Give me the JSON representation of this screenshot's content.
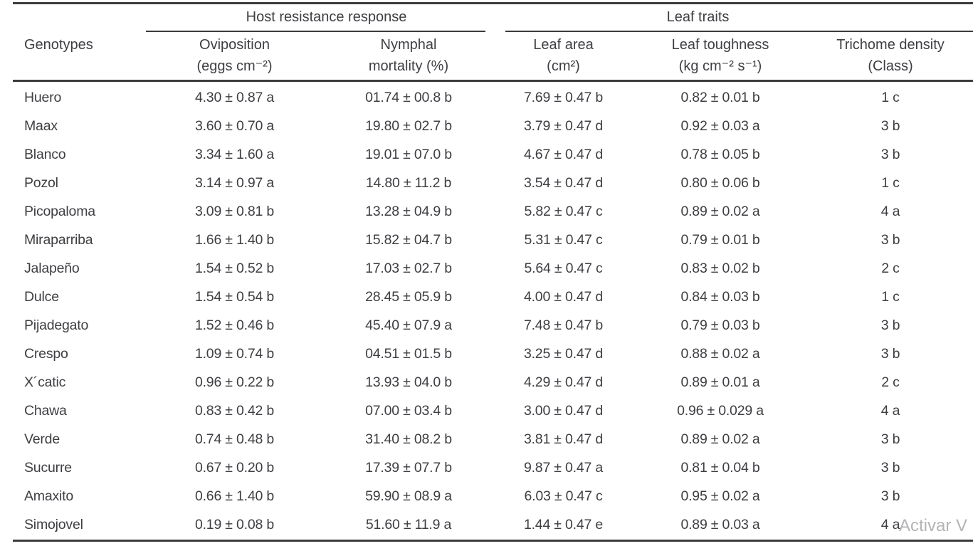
{
  "table": {
    "column_groups": [
      {
        "label": "Host resistance response"
      },
      {
        "label": "Leaf traits"
      }
    ],
    "columns": [
      {
        "label": "Genotypes",
        "sub": ""
      },
      {
        "label": "Oviposition",
        "sub": "(eggs cm⁻²)"
      },
      {
        "label": "Nymphal",
        "sub": "mortality (%)"
      },
      {
        "label": "Leaf area",
        "sub": "(cm²)"
      },
      {
        "label": "Leaf toughness",
        "sub": "(kg cm⁻² s⁻¹)"
      },
      {
        "label": "Trichome density",
        "sub": "(Class)"
      }
    ],
    "rows": [
      [
        "Huero",
        "4.30 ± 0.87 a",
        "01.74 ± 00.8 b",
        "7.69 ± 0.47 b",
        "0.82 ± 0.01 b",
        "1 c"
      ],
      [
        "Maax",
        "3.60 ± 0.70 a",
        "19.80 ± 02.7 b",
        "3.79 ± 0.47 d",
        "0.92 ± 0.03 a",
        "3 b"
      ],
      [
        "Blanco",
        "3.34 ± 1.60 a",
        "19.01 ± 07.0 b",
        "4.67 ± 0.47 d",
        "0.78 ± 0.05 b",
        "3 b"
      ],
      [
        "Pozol",
        "3.14 ± 0.97 a",
        "14.80 ± 11.2 b",
        "3.54 ± 0.47 d",
        "0.80 ± 0.06 b",
        "1 c"
      ],
      [
        "Picopaloma",
        "3.09 ± 0.81 b",
        "13.28 ± 04.9 b",
        "5.82 ± 0.47 c",
        "0.89 ± 0.02 a",
        "4 a"
      ],
      [
        "Miraparriba",
        "1.66 ± 1.40 b",
        "15.82 ± 04.7 b",
        "5.31 ± 0.47 c",
        "0.79 ± 0.01 b",
        "3 b"
      ],
      [
        "Jalapeño",
        "1.54 ± 0.52 b",
        "17.03 ± 02.7 b",
        "5.64 ± 0.47 c",
        "0.83 ± 0.02 b",
        "2 c"
      ],
      [
        "Dulce",
        "1.54 ± 0.54 b",
        "28.45 ± 05.9 b",
        "4.00 ± 0.47 d",
        "0.84 ± 0.03 b",
        "1 c"
      ],
      [
        "Pijadegato",
        "1.52 ± 0.46 b",
        "45.40 ± 07.9 a",
        "7.48 ± 0.47 b",
        "0.79 ± 0.03 b",
        "3 b"
      ],
      [
        "Crespo",
        "1.09 ± 0.74 b",
        "04.51 ± 01.5 b",
        "3.25 ± 0.47 d",
        "0.88 ± 0.02 a",
        "3 b"
      ],
      [
        "X´catic",
        "0.96 ± 0.22 b",
        "13.93 ± 04.0 b",
        "4.29 ± 0.47 d",
        "0.89 ± 0.01 a",
        "2 c"
      ],
      [
        "Chawa",
        "0.83 ± 0.42 b",
        "07.00 ± 03.4 b",
        "3.00 ± 0.47 d",
        "0.96 ± 0.029 a",
        "4 a"
      ],
      [
        "Verde",
        "0.74 ± 0.48 b",
        "31.40 ± 08.2 b",
        "3.81 ± 0.47 d",
        "0.89 ± 0.02 a",
        "3 b"
      ],
      [
        "Sucurre",
        "0.67 ± 0.20 b",
        "17.39 ± 07.7 b",
        "9.87 ± 0.47 a",
        "0.81 ± 0.04 b",
        "3 b"
      ],
      [
        "Amaxito",
        "0.66 ± 1.40 b",
        "59.90 ± 08.9 a",
        "6.03 ± 0.47 c",
        "0.95 ± 0.02 a",
        "3 b"
      ],
      [
        "Simojovel",
        "0.19 ± 0.08 b",
        "51.60 ± 11.9 a",
        "1.44 ± 0.47 e",
        "0.89 ± 0.03 a",
        "4 a"
      ]
    ]
  },
  "watermark": {
    "text": "Activar V"
  },
  "colors": {
    "text": "#3e3e43",
    "rule": "#3b3b3e",
    "watermark": "#b2b4b6",
    "background": "#ffffff"
  }
}
